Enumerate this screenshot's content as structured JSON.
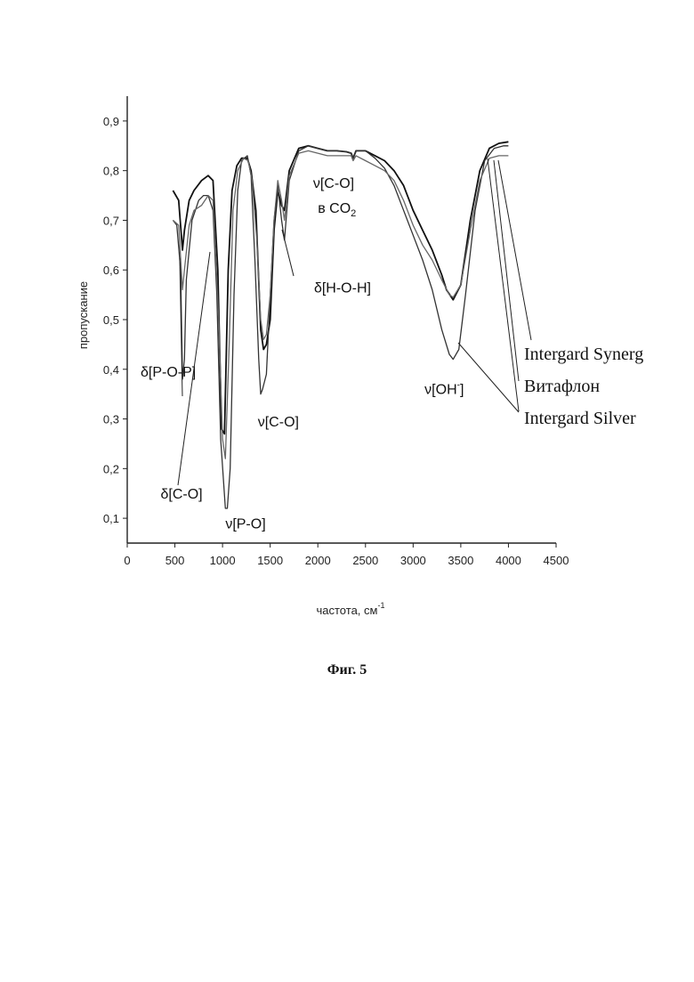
{
  "chart_data": {
    "type": "line",
    "xlabel": "частота, см",
    "xlabel_superscript": "-1",
    "ylabel": "пропускание",
    "xlim": [
      0,
      4500
    ],
    "ylim": [
      0.05,
      0.95
    ],
    "x_ticks": [
      0,
      500,
      1000,
      1500,
      2000,
      2500,
      3000,
      3500,
      4000,
      4500
    ],
    "y_ticks": [
      0.1,
      0.2,
      0.3,
      0.4,
      0.5,
      0.6,
      0.7,
      0.8,
      0.9
    ],
    "y_tick_labels": [
      "0,1",
      "0,2",
      "0,3",
      "0,4",
      "0,5",
      "0,6",
      "0,7",
      "0,8",
      "0,9"
    ],
    "grid": false,
    "series": [
      {
        "name": "Intergard Synerg",
        "color": "#111111",
        "points": [
          [
            480,
            0.76
          ],
          [
            540,
            0.74
          ],
          [
            580,
            0.64
          ],
          [
            600,
            0.68
          ],
          [
            650,
            0.74
          ],
          [
            700,
            0.76
          ],
          [
            780,
            0.78
          ],
          [
            850,
            0.79
          ],
          [
            900,
            0.78
          ],
          [
            950,
            0.6
          ],
          [
            990,
            0.28
          ],
          [
            1020,
            0.27
          ],
          [
            1060,
            0.6
          ],
          [
            1100,
            0.76
          ],
          [
            1150,
            0.81
          ],
          [
            1200,
            0.825
          ],
          [
            1260,
            0.825
          ],
          [
            1300,
            0.8
          ],
          [
            1350,
            0.72
          ],
          [
            1400,
            0.48
          ],
          [
            1430,
            0.44
          ],
          [
            1460,
            0.45
          ],
          [
            1500,
            0.5
          ],
          [
            1540,
            0.68
          ],
          [
            1580,
            0.76
          ],
          [
            1620,
            0.73
          ],
          [
            1650,
            0.72
          ],
          [
            1700,
            0.8
          ],
          [
            1800,
            0.845
          ],
          [
            1900,
            0.85
          ],
          [
            2000,
            0.845
          ],
          [
            2100,
            0.84
          ],
          [
            2200,
            0.84
          ],
          [
            2300,
            0.838
          ],
          [
            2350,
            0.835
          ],
          [
            2370,
            0.825
          ],
          [
            2400,
            0.84
          ],
          [
            2500,
            0.84
          ],
          [
            2600,
            0.83
          ],
          [
            2700,
            0.82
          ],
          [
            2800,
            0.8
          ],
          [
            2900,
            0.77
          ],
          [
            3000,
            0.72
          ],
          [
            3100,
            0.68
          ],
          [
            3200,
            0.64
          ],
          [
            3300,
            0.59
          ],
          [
            3350,
            0.56
          ],
          [
            3420,
            0.54
          ],
          [
            3500,
            0.57
          ],
          [
            3600,
            0.7
          ],
          [
            3700,
            0.8
          ],
          [
            3800,
            0.845
          ],
          [
            3900,
            0.855
          ],
          [
            4000,
            0.858
          ]
        ]
      },
      {
        "name": "Витафлон",
        "color": "#333333",
        "points": [
          [
            480,
            0.7
          ],
          [
            520,
            0.69
          ],
          [
            560,
            0.6
          ],
          [
            580,
            0.38
          ],
          [
            600,
            0.42
          ],
          [
            620,
            0.58
          ],
          [
            680,
            0.7
          ],
          [
            750,
            0.74
          ],
          [
            800,
            0.75
          ],
          [
            850,
            0.75
          ],
          [
            900,
            0.72
          ],
          [
            940,
            0.55
          ],
          [
            980,
            0.26
          ],
          [
            1030,
            0.12
          ],
          [
            1050,
            0.12
          ],
          [
            1080,
            0.2
          ],
          [
            1120,
            0.55
          ],
          [
            1160,
            0.76
          ],
          [
            1200,
            0.82
          ],
          [
            1260,
            0.83
          ],
          [
            1300,
            0.79
          ],
          [
            1340,
            0.62
          ],
          [
            1380,
            0.42
          ],
          [
            1400,
            0.35
          ],
          [
            1420,
            0.36
          ],
          [
            1460,
            0.39
          ],
          [
            1500,
            0.55
          ],
          [
            1540,
            0.7
          ],
          [
            1580,
            0.77
          ],
          [
            1620,
            0.7
          ],
          [
            1650,
            0.66
          ],
          [
            1700,
            0.78
          ],
          [
            1800,
            0.84
          ],
          [
            1900,
            0.85
          ],
          [
            2000,
            0.845
          ],
          [
            2100,
            0.84
          ],
          [
            2200,
            0.84
          ],
          [
            2300,
            0.838
          ],
          [
            2350,
            0.835
          ],
          [
            2370,
            0.825
          ],
          [
            2400,
            0.84
          ],
          [
            2500,
            0.84
          ],
          [
            2600,
            0.825
          ],
          [
            2700,
            0.805
          ],
          [
            2800,
            0.77
          ],
          [
            2900,
            0.72
          ],
          [
            3000,
            0.67
          ],
          [
            3100,
            0.62
          ],
          [
            3200,
            0.56
          ],
          [
            3300,
            0.48
          ],
          [
            3380,
            0.43
          ],
          [
            3420,
            0.42
          ],
          [
            3480,
            0.44
          ],
          [
            3550,
            0.55
          ],
          [
            3650,
            0.72
          ],
          [
            3750,
            0.82
          ],
          [
            3850,
            0.845
          ],
          [
            3950,
            0.85
          ],
          [
            4000,
            0.85
          ]
        ]
      },
      {
        "name": "Intergard Silver",
        "color": "#666666",
        "points": [
          [
            480,
            0.7
          ],
          [
            540,
            0.69
          ],
          [
            580,
            0.56
          ],
          [
            600,
            0.6
          ],
          [
            650,
            0.69
          ],
          [
            700,
            0.72
          ],
          [
            780,
            0.73
          ],
          [
            850,
            0.75
          ],
          [
            900,
            0.74
          ],
          [
            960,
            0.5
          ],
          [
            1000,
            0.26
          ],
          [
            1030,
            0.22
          ],
          [
            1070,
            0.45
          ],
          [
            1110,
            0.72
          ],
          [
            1160,
            0.8
          ],
          [
            1220,
            0.825
          ],
          [
            1270,
            0.82
          ],
          [
            1310,
            0.78
          ],
          [
            1360,
            0.66
          ],
          [
            1400,
            0.5
          ],
          [
            1430,
            0.46
          ],
          [
            1460,
            0.47
          ],
          [
            1500,
            0.55
          ],
          [
            1540,
            0.7
          ],
          [
            1580,
            0.78
          ],
          [
            1620,
            0.74
          ],
          [
            1650,
            0.7
          ],
          [
            1700,
            0.79
          ],
          [
            1800,
            0.835
          ],
          [
            1900,
            0.84
          ],
          [
            2000,
            0.835
          ],
          [
            2100,
            0.83
          ],
          [
            2200,
            0.83
          ],
          [
            2300,
            0.83
          ],
          [
            2350,
            0.83
          ],
          [
            2370,
            0.82
          ],
          [
            2400,
            0.83
          ],
          [
            2500,
            0.82
          ],
          [
            2600,
            0.81
          ],
          [
            2700,
            0.8
          ],
          [
            2800,
            0.78
          ],
          [
            2900,
            0.74
          ],
          [
            3000,
            0.69
          ],
          [
            3100,
            0.65
          ],
          [
            3200,
            0.62
          ],
          [
            3300,
            0.58
          ],
          [
            3380,
            0.55
          ],
          [
            3420,
            0.545
          ],
          [
            3500,
            0.57
          ],
          [
            3600,
            0.68
          ],
          [
            3700,
            0.78
          ],
          [
            3800,
            0.825
          ],
          [
            3900,
            0.83
          ],
          [
            4000,
            0.83
          ]
        ]
      }
    ],
    "annotations": [
      {
        "text": "δ[P-O-P]",
        "x": 140,
        "y": 0.385
      },
      {
        "text": "δ[C-O]",
        "x": 350,
        "y": 0.14
      },
      {
        "text": "ν[P-O]",
        "x": 1030,
        "y": 0.08
      },
      {
        "text": "ν[C-O]",
        "x": 1370,
        "y": 0.285
      },
      {
        "text": "ν[OH",
        "superscript": "-",
        "close": "]",
        "x": 3120,
        "y": 0.35
      },
      {
        "text": "δ[H-O-H]",
        "x": 1960,
        "y": 0.555
      },
      {
        "text": "ν[C-O]",
        "x": 1950,
        "y": 0.765
      },
      {
        "text": "в CO",
        "subscript": "2",
        "x": 2000,
        "y": 0.715
      }
    ],
    "legend": {
      "placement": "right",
      "entries": [
        "Intergard Synerg",
        "Витафлон",
        "Intergard Silver"
      ]
    }
  },
  "caption": "Фиг. 5"
}
